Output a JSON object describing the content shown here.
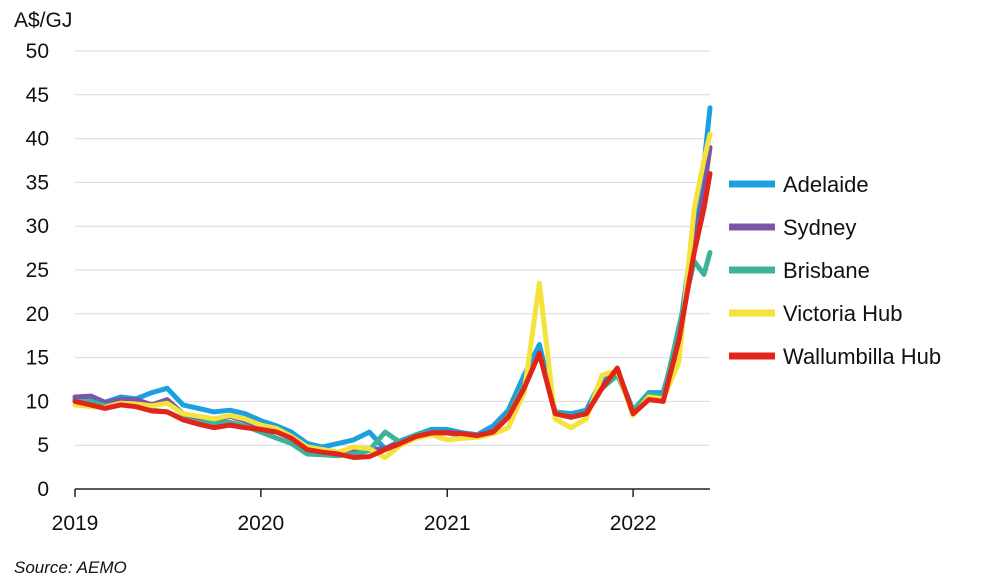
{
  "chart_data": {
    "type": "line",
    "ylabel": "A$/GJ",
    "ylim": [
      0,
      50
    ],
    "yticks": [
      "0",
      "5",
      "10",
      "15",
      "20",
      "25",
      "30",
      "35",
      "40",
      "45",
      "50"
    ],
    "xlim": [
      "2019-01-01",
      "2022-06-01"
    ],
    "xticks": [
      {
        "label": "2019",
        "date": "2019-01-01"
      },
      {
        "label": "2020",
        "date": "2020-01-01"
      },
      {
        "label": "2021",
        "date": "2021-01-01"
      },
      {
        "label": "2022",
        "date": "2022-01-01"
      }
    ],
    "grid": "horizontal",
    "legend_position": "right",
    "series": [
      {
        "name": "Adelaide",
        "color": "#1ba1e2",
        "points": [
          [
            "2019-01-01",
            10.2
          ],
          [
            "2019-02-01",
            10.0
          ],
          [
            "2019-03-01",
            9.9
          ],
          [
            "2019-04-01",
            10.5
          ],
          [
            "2019-05-01",
            10.3
          ],
          [
            "2019-06-01",
            11.0
          ],
          [
            "2019-07-01",
            11.5
          ],
          [
            "2019-08-01",
            9.6
          ],
          [
            "2019-09-01",
            9.2
          ],
          [
            "2019-10-01",
            8.8
          ],
          [
            "2019-11-01",
            9.0
          ],
          [
            "2019-12-01",
            8.6
          ],
          [
            "2020-01-01",
            7.8
          ],
          [
            "2020-02-01",
            7.2
          ],
          [
            "2020-03-01",
            6.5
          ],
          [
            "2020-04-01",
            5.2
          ],
          [
            "2020-05-01",
            4.8
          ],
          [
            "2020-06-01",
            5.2
          ],
          [
            "2020-07-01",
            5.6
          ],
          [
            "2020-08-01",
            6.5
          ],
          [
            "2020-09-01",
            4.6
          ],
          [
            "2020-10-01",
            5.5
          ],
          [
            "2020-11-01",
            6.2
          ],
          [
            "2020-12-01",
            6.8
          ],
          [
            "2021-01-01",
            6.8
          ],
          [
            "2021-02-01",
            6.4
          ],
          [
            "2021-03-01",
            6.2
          ],
          [
            "2021-04-01",
            7.2
          ],
          [
            "2021-05-01",
            9.0
          ],
          [
            "2021-06-01",
            13.0
          ],
          [
            "2021-07-01",
            16.5
          ],
          [
            "2021-08-01",
            8.8
          ],
          [
            "2021-09-01",
            8.6
          ],
          [
            "2021-10-01",
            9.0
          ],
          [
            "2021-11-01",
            12.5
          ],
          [
            "2021-12-01",
            13.5
          ],
          [
            "2022-01-01",
            9.0
          ],
          [
            "2022-02-01",
            11.0
          ],
          [
            "2022-03-01",
            11.0
          ],
          [
            "2022-04-01",
            17.5
          ],
          [
            "2022-05-01",
            30.0
          ],
          [
            "2022-05-20",
            37.0
          ],
          [
            "2022-06-01",
            43.5
          ]
        ]
      },
      {
        "name": "Sydney",
        "color": "#7a57a6",
        "points": [
          [
            "2019-01-01",
            10.5
          ],
          [
            "2019-02-01",
            10.6
          ],
          [
            "2019-03-01",
            9.9
          ],
          [
            "2019-04-01",
            10.2
          ],
          [
            "2019-05-01",
            10.2
          ],
          [
            "2019-06-01",
            9.6
          ],
          [
            "2019-07-01",
            10.2
          ],
          [
            "2019-08-01",
            8.6
          ],
          [
            "2019-09-01",
            8.0
          ],
          [
            "2019-10-01",
            7.8
          ],
          [
            "2019-11-01",
            8.3
          ],
          [
            "2019-12-01",
            7.8
          ],
          [
            "2020-01-01",
            7.0
          ],
          [
            "2020-02-01",
            6.6
          ],
          [
            "2020-03-01",
            6.0
          ],
          [
            "2020-04-01",
            4.5
          ],
          [
            "2020-05-01",
            4.5
          ],
          [
            "2020-06-01",
            4.2
          ],
          [
            "2020-07-01",
            4.4
          ],
          [
            "2020-08-01",
            4.5
          ],
          [
            "2020-09-01",
            4.6
          ],
          [
            "2020-10-01",
            5.3
          ],
          [
            "2020-11-01",
            6.0
          ],
          [
            "2020-12-01",
            6.5
          ],
          [
            "2021-01-01",
            6.5
          ],
          [
            "2021-02-01",
            6.2
          ],
          [
            "2021-03-01",
            6.0
          ],
          [
            "2021-04-01",
            6.6
          ],
          [
            "2021-05-01",
            8.5
          ],
          [
            "2021-06-01",
            12.0
          ],
          [
            "2021-07-01",
            15.5
          ],
          [
            "2021-08-01",
            8.6
          ],
          [
            "2021-09-01",
            8.2
          ],
          [
            "2021-10-01",
            8.6
          ],
          [
            "2021-11-01",
            11.8
          ],
          [
            "2021-12-01",
            13.5
          ],
          [
            "2022-01-01",
            8.8
          ],
          [
            "2022-02-01",
            10.6
          ],
          [
            "2022-03-01",
            10.5
          ],
          [
            "2022-04-01",
            16.5
          ],
          [
            "2022-05-01",
            28.0
          ],
          [
            "2022-05-20",
            34.0
          ],
          [
            "2022-06-01",
            39.0
          ]
        ]
      },
      {
        "name": "Brisbane",
        "color": "#3bb39b",
        "points": [
          [
            "2019-01-01",
            10.0
          ],
          [
            "2019-02-01",
            10.0
          ],
          [
            "2019-03-01",
            9.5
          ],
          [
            "2019-04-01",
            9.8
          ],
          [
            "2019-05-01",
            9.6
          ],
          [
            "2019-06-01",
            9.0
          ],
          [
            "2019-07-01",
            8.8
          ],
          [
            "2019-08-01",
            8.0
          ],
          [
            "2019-09-01",
            7.6
          ],
          [
            "2019-10-01",
            7.5
          ],
          [
            "2019-11-01",
            7.6
          ],
          [
            "2019-12-01",
            7.2
          ],
          [
            "2020-01-01",
            6.5
          ],
          [
            "2020-02-01",
            5.8
          ],
          [
            "2020-03-01",
            5.2
          ],
          [
            "2020-04-01",
            4.0
          ],
          [
            "2020-05-01",
            3.9
          ],
          [
            "2020-06-01",
            3.8
          ],
          [
            "2020-07-01",
            4.0
          ],
          [
            "2020-08-01",
            4.4
          ],
          [
            "2020-09-01",
            6.5
          ],
          [
            "2020-10-01",
            5.3
          ],
          [
            "2020-11-01",
            6.2
          ],
          [
            "2020-12-01",
            6.5
          ],
          [
            "2021-01-01",
            6.4
          ],
          [
            "2021-02-01",
            6.1
          ],
          [
            "2021-03-01",
            6.0
          ],
          [
            "2021-04-01",
            6.5
          ],
          [
            "2021-05-01",
            8.4
          ],
          [
            "2021-06-01",
            12.0
          ],
          [
            "2021-07-01",
            15.5
          ],
          [
            "2021-08-01",
            8.8
          ],
          [
            "2021-09-01",
            8.2
          ],
          [
            "2021-10-01",
            8.6
          ],
          [
            "2021-11-01",
            11.5
          ],
          [
            "2021-12-01",
            13.0
          ],
          [
            "2022-01-01",
            9.0
          ],
          [
            "2022-02-01",
            10.8
          ],
          [
            "2022-03-01",
            10.5
          ],
          [
            "2022-04-01",
            18.5
          ],
          [
            "2022-05-01",
            26.0
          ],
          [
            "2022-05-20",
            24.5
          ],
          [
            "2022-06-01",
            27.0
          ]
        ]
      },
      {
        "name": "Victoria Hub",
        "color": "#f5e33b",
        "points": [
          [
            "2019-01-01",
            9.6
          ],
          [
            "2019-02-01",
            9.4
          ],
          [
            "2019-03-01",
            9.3
          ],
          [
            "2019-04-01",
            9.8
          ],
          [
            "2019-05-01",
            9.7
          ],
          [
            "2019-06-01",
            9.5
          ],
          [
            "2019-07-01",
            9.8
          ],
          [
            "2019-08-01",
            8.6
          ],
          [
            "2019-09-01",
            8.3
          ],
          [
            "2019-10-01",
            8.0
          ],
          [
            "2019-11-01",
            8.4
          ],
          [
            "2019-12-01",
            8.0
          ],
          [
            "2020-01-01",
            7.3
          ],
          [
            "2020-02-01",
            6.9
          ],
          [
            "2020-03-01",
            6.0
          ],
          [
            "2020-04-01",
            4.8
          ],
          [
            "2020-05-01",
            4.5
          ],
          [
            "2020-06-01",
            4.2
          ],
          [
            "2020-07-01",
            4.8
          ],
          [
            "2020-08-01",
            4.6
          ],
          [
            "2020-09-01",
            3.6
          ],
          [
            "2020-10-01",
            5.0
          ],
          [
            "2020-11-01",
            5.8
          ],
          [
            "2020-12-01",
            6.2
          ],
          [
            "2021-01-01",
            5.6
          ],
          [
            "2021-02-01",
            5.8
          ],
          [
            "2021-03-01",
            5.9
          ],
          [
            "2021-04-01",
            6.3
          ],
          [
            "2021-05-01",
            7.0
          ],
          [
            "2021-06-01",
            11.0
          ],
          [
            "2021-07-01",
            23.5
          ],
          [
            "2021-08-01",
            8.0
          ],
          [
            "2021-09-01",
            7.0
          ],
          [
            "2021-10-01",
            8.0
          ],
          [
            "2021-11-01",
            13.0
          ],
          [
            "2021-12-01",
            13.5
          ],
          [
            "2022-01-01",
            8.4
          ],
          [
            "2022-02-01",
            10.5
          ],
          [
            "2022-03-01",
            10.3
          ],
          [
            "2022-04-01",
            14.5
          ],
          [
            "2022-05-01",
            32.0
          ],
          [
            "2022-05-20",
            37.5
          ],
          [
            "2022-06-01",
            40.5
          ]
        ]
      },
      {
        "name": "Wallumbilla Hub",
        "color": "#e1251b",
        "points": [
          [
            "2019-01-01",
            10.0
          ],
          [
            "2019-02-01",
            9.6
          ],
          [
            "2019-03-01",
            9.2
          ],
          [
            "2019-04-01",
            9.6
          ],
          [
            "2019-05-01",
            9.4
          ],
          [
            "2019-06-01",
            8.9
          ],
          [
            "2019-07-01",
            8.8
          ],
          [
            "2019-08-01",
            7.9
          ],
          [
            "2019-09-01",
            7.4
          ],
          [
            "2019-10-01",
            7.0
          ],
          [
            "2019-11-01",
            7.3
          ],
          [
            "2019-12-01",
            7.0
          ],
          [
            "2020-01-01",
            6.8
          ],
          [
            "2020-02-01",
            6.5
          ],
          [
            "2020-03-01",
            5.8
          ],
          [
            "2020-04-01",
            4.5
          ],
          [
            "2020-05-01",
            4.2
          ],
          [
            "2020-06-01",
            4.0
          ],
          [
            "2020-07-01",
            3.6
          ],
          [
            "2020-08-01",
            3.7
          ],
          [
            "2020-09-01",
            4.5
          ],
          [
            "2020-10-01",
            5.2
          ],
          [
            "2020-11-01",
            6.0
          ],
          [
            "2020-12-01",
            6.4
          ],
          [
            "2021-01-01",
            6.4
          ],
          [
            "2021-02-01",
            6.3
          ],
          [
            "2021-03-01",
            6.1
          ],
          [
            "2021-04-01",
            6.5
          ],
          [
            "2021-05-01",
            8.2
          ],
          [
            "2021-06-01",
            11.5
          ],
          [
            "2021-07-01",
            15.5
          ],
          [
            "2021-08-01",
            8.6
          ],
          [
            "2021-09-01",
            8.2
          ],
          [
            "2021-10-01",
            8.6
          ],
          [
            "2021-11-01",
            11.5
          ],
          [
            "2021-12-01",
            13.8
          ],
          [
            "2022-01-01",
            8.6
          ],
          [
            "2022-02-01",
            10.2
          ],
          [
            "2022-03-01",
            10.0
          ],
          [
            "2022-04-01",
            17.0
          ],
          [
            "2022-05-01",
            27.0
          ],
          [
            "2022-05-20",
            32.0
          ],
          [
            "2022-06-01",
            36.0
          ]
        ]
      }
    ]
  },
  "source_text": "Source: AEMO"
}
